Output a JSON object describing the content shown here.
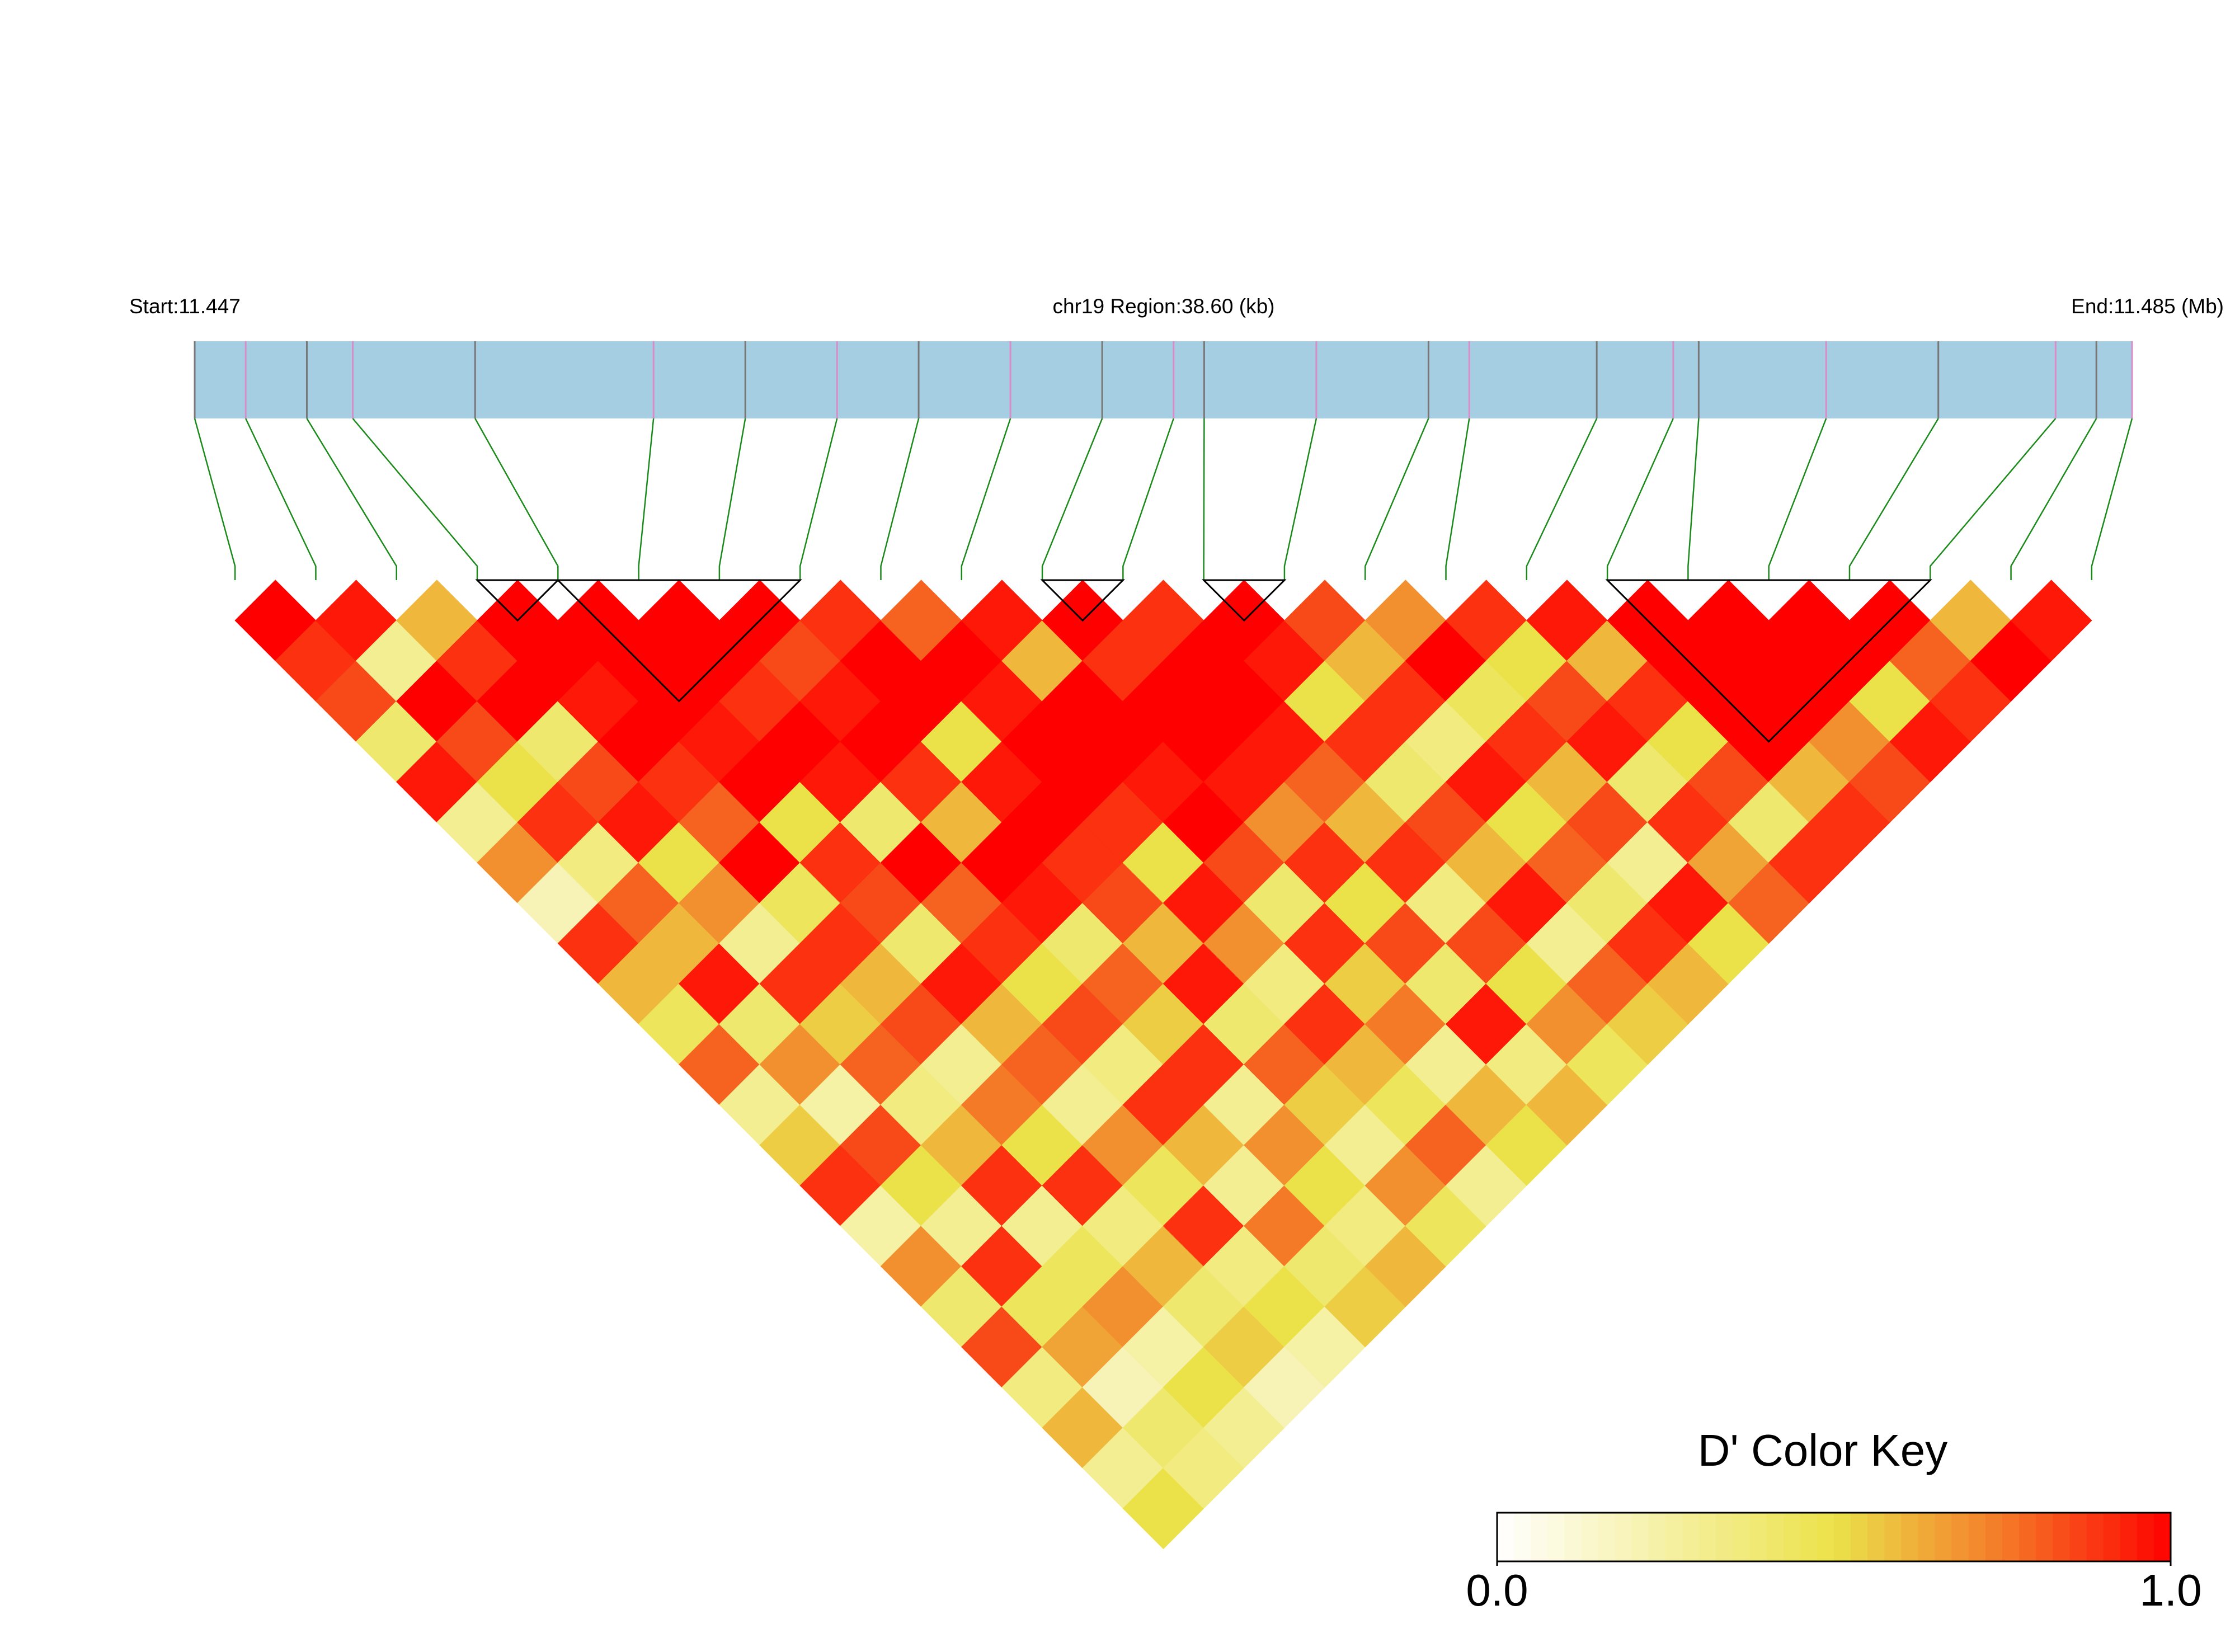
{
  "chart_data": {
    "type": "ld_heatmap",
    "start_label": "Start:11.447",
    "region_label": "chr19 Region:38.60 (kb)",
    "end_label": "End:11.485 (Mb)",
    "xlim": [
      11.447,
      11.485
    ],
    "x": [
      11.447,
      11.448,
      11.4492,
      11.4501,
      11.4525,
      11.456,
      11.4578,
      11.4596,
      11.4612,
      11.463,
      11.4648,
      11.4662,
      11.4668,
      11.469,
      11.4712,
      11.472,
      11.4745,
      11.476,
      11.4765,
      11.479,
      11.4812,
      11.4835,
      11.4843,
      11.485
    ],
    "bar_color": "#a6cee3",
    "tick_colors": [
      "#777777",
      "#d98cc8"
    ],
    "connector_color": "#1a8a1a",
    "block_color": "#000000",
    "dprime": [
      [
        1,
        0.9,
        0.85,
        0.4,
        0.95,
        0.3,
        0.7,
        0.2,
        0.9,
        0.6,
        0.45,
        0.8,
        0.3,
        0.55,
        0.9,
        0.25,
        0.7,
        0.4,
        0.85,
        0.35,
        0.6,
        0.3,
        0.5
      ],
      [
        0.95,
        0.3,
        1,
        0.85,
        0.5,
        0.9,
        0.35,
        0.8,
        0.6,
        0.95,
        0.4,
        0.7,
        0.25,
        0.85,
        0.5,
        0.3,
        0.9,
        0.45,
        0.65,
        0.2,
        0.4,
        0.35
      ],
      [
        0.6,
        0.9,
        1,
        0.4,
        0.85,
        0.95,
        0.5,
        0.7,
        0.3,
        0.9,
        0.55,
        0.8,
        0.35,
        0.6,
        0.9,
        0.3,
        0.45,
        0.7,
        0.25,
        0.5,
        0.3
      ],
      [
        1,
        1,
        0.95,
        1,
        0.9,
        0.8,
        1,
        0.45,
        0.9,
        0.6,
        0.85,
        0.3,
        0.75,
        0.5,
        0.9,
        0.35,
        0.6,
        0.4,
        0.55,
        0.2
      ],
      [
        1,
        1,
        1,
        0.95,
        1,
        0.5,
        0.9,
        0.85,
        0.4,
        0.95,
        0.6,
        0.8,
        0.3,
        0.7,
        0.45,
        0.9,
        0.35,
        0.5,
        0.25
      ],
      [
        1,
        1,
        0.9,
        1,
        0.95,
        0.4,
        1,
        0.8,
        0.9,
        0.5,
        0.85,
        0.35,
        0.9,
        0.6,
        0.3,
        0.75,
        0.4,
        0.55
      ],
      [
        1,
        0.85,
        0.95,
        1,
        0.9,
        0.6,
        1,
        0.95,
        0.4,
        0.8,
        0.55,
        0.9,
        0.3,
        0.7,
        0.5,
        0.35,
        0.6
      ],
      [
        0.9,
        1,
        1,
        0.5,
        0.95,
        1,
        0.9,
        0.85,
        0.6,
        0.95,
        0.4,
        0.8,
        0.55,
        0.3,
        0.7,
        0.45
      ],
      [
        0.8,
        1,
        0.95,
        1,
        1,
        0.9,
        0.5,
        0.95,
        0.7,
        0.35,
        0.9,
        0.6,
        0.45,
        0.8,
        0.3
      ],
      [
        0.95,
        0.6,
        1,
        1,
        0.95,
        1,
        0.85,
        0.4,
        0.9,
        0.55,
        0.75,
        0.3,
        0.6,
        0.5
      ],
      [
        1,
        0.9,
        1,
        1,
        0.95,
        0.7,
        0.9,
        0.5,
        0.85,
        0.4,
        0.95,
        0.35,
        0.6
      ],
      [
        0.9,
        1,
        1,
        0.95,
        0.8,
        0.6,
        0.9,
        0.35,
        0.85,
        0.5,
        0.7,
        0.45
      ],
      [
        1,
        0.95,
        0.5,
        0.9,
        0.4,
        0.85,
        0.6,
        0.95,
        0.3,
        0.8,
        0.55
      ],
      [
        0.85,
        0.6,
        0.9,
        0.35,
        0.95,
        0.5,
        0.8,
        0.4,
        0.9,
        0.6
      ],
      [
        0.7,
        1,
        0.45,
        0.9,
        0.6,
        0.85,
        0.3,
        0.95,
        0.5
      ],
      [
        0.9,
        0.5,
        0.85,
        0.95,
        0.4,
        0.9,
        0.65,
        0.8
      ],
      [
        0.95,
        0.6,
        0.9,
        0.5,
        0.85,
        0.4,
        0.9
      ],
      [
        1,
        1,
        1,
        1,
        0.6,
        0.9
      ],
      [
        1,
        1,
        1,
        0.7,
        0.85
      ],
      [
        1,
        1,
        0.5,
        0.95
      ],
      [
        1,
        0.8,
        0.9
      ],
      [
        0.6,
        1
      ],
      [
        0.95
      ]
    ],
    "blocks": [
      [
        3,
        4
      ],
      [
        4,
        7
      ],
      [
        10,
        11
      ],
      [
        12,
        13
      ],
      [
        17,
        21
      ]
    ],
    "color_key": {
      "title": "D' Color Key",
      "stops": [
        [
          0,
          "#ffffff"
        ],
        [
          0.5,
          "#ebe24a"
        ],
        [
          0.75,
          "#f47a28"
        ],
        [
          1,
          "#ff0000"
        ]
      ],
      "ticks": [
        {
          "value": 0,
          "label": "0.0"
        },
        {
          "value": 1,
          "label": "1.0"
        }
      ]
    }
  }
}
